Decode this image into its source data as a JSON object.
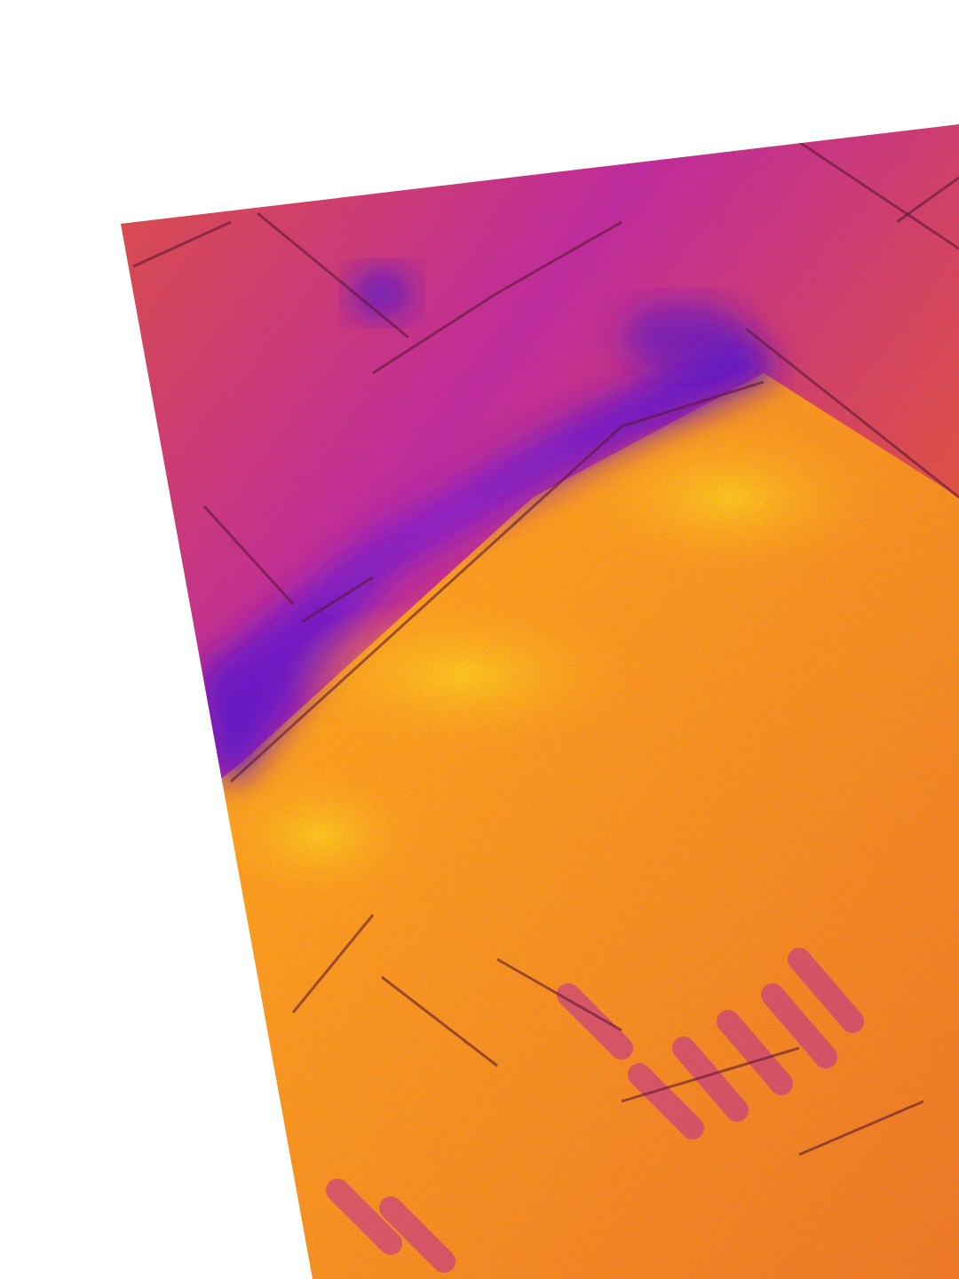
{
  "image": {
    "kind": "thermal aerial photograph",
    "colormap": "inferno-like",
    "background_color": "#ffffff",
    "palette": {
      "cold_deep": "#5a13c8",
      "cold": "#8a1ec8",
      "magenta": "#c02a9e",
      "warm_red": "#e2523d",
      "warm": "#f07a22",
      "hot": "#ffa21a",
      "hottest": "#ffd21a",
      "edge_dark": "#5a1430"
    },
    "regions": [
      {
        "name": "cool-walkway-band",
        "temperature": "cold"
      },
      {
        "name": "paved-block-upper",
        "temperature": "magenta"
      },
      {
        "name": "rooftop-hot-area",
        "temperature": "hot"
      }
    ]
  }
}
